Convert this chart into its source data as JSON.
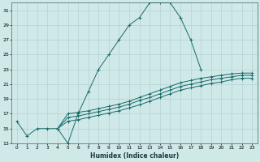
{
  "xlabel": "Humidex (Indice chaleur)",
  "bg_color": "#cfe8e8",
  "grid_color": "#b0cccc",
  "line_color": "#1a6b6b",
  "xlim": [
    -0.5,
    23.5
  ],
  "ylim": [
    13,
    32
  ],
  "xticks": [
    0,
    1,
    2,
    3,
    4,
    5,
    6,
    7,
    8,
    9,
    10,
    11,
    12,
    13,
    14,
    15,
    16,
    17,
    18,
    19,
    20,
    21,
    22,
    23
  ],
  "yticks": [
    13,
    15,
    17,
    19,
    21,
    23,
    25,
    27,
    29,
    31
  ],
  "curve1_x": [
    0,
    1,
    2,
    3,
    4,
    5,
    6,
    7,
    8,
    9,
    10,
    11,
    12,
    13,
    14,
    15,
    16,
    17,
    18
  ],
  "curve1_y": [
    16,
    14,
    15,
    15,
    15,
    13,
    17,
    20,
    23,
    25,
    27,
    29,
    30,
    32,
    32,
    32,
    30,
    27,
    23
  ],
  "line2_x": [
    4,
    5,
    6,
    7,
    8,
    9,
    10,
    11,
    12,
    13,
    14,
    15,
    16,
    17,
    18,
    19,
    20,
    21,
    22,
    23
  ],
  "line2_y": [
    15,
    17,
    17.2,
    17.4,
    17.7,
    18.0,
    18.3,
    18.7,
    19.2,
    19.7,
    20.2,
    20.7,
    21.2,
    21.5,
    21.8,
    22.0,
    22.2,
    22.4,
    22.5,
    22.5
  ],
  "line3_x": [
    4,
    5,
    6,
    7,
    8,
    9,
    10,
    11,
    12,
    13,
    14,
    15,
    16,
    17,
    18,
    19,
    20,
    21,
    22,
    23
  ],
  "line3_y": [
    15,
    16.5,
    16.7,
    17.0,
    17.3,
    17.6,
    17.9,
    18.3,
    18.8,
    19.2,
    19.7,
    20.2,
    20.7,
    21.0,
    21.3,
    21.6,
    21.8,
    22.0,
    22.2,
    22.2
  ],
  "line4_x": [
    4,
    5,
    6,
    7,
    8,
    9,
    10,
    11,
    12,
    13,
    14,
    15,
    16,
    17,
    18,
    19,
    20,
    21,
    22,
    23
  ],
  "line4_y": [
    15,
    16.0,
    16.2,
    16.5,
    16.8,
    17.1,
    17.4,
    17.8,
    18.2,
    18.7,
    19.2,
    19.7,
    20.2,
    20.5,
    20.8,
    21.1,
    21.3,
    21.6,
    21.8,
    21.8
  ]
}
